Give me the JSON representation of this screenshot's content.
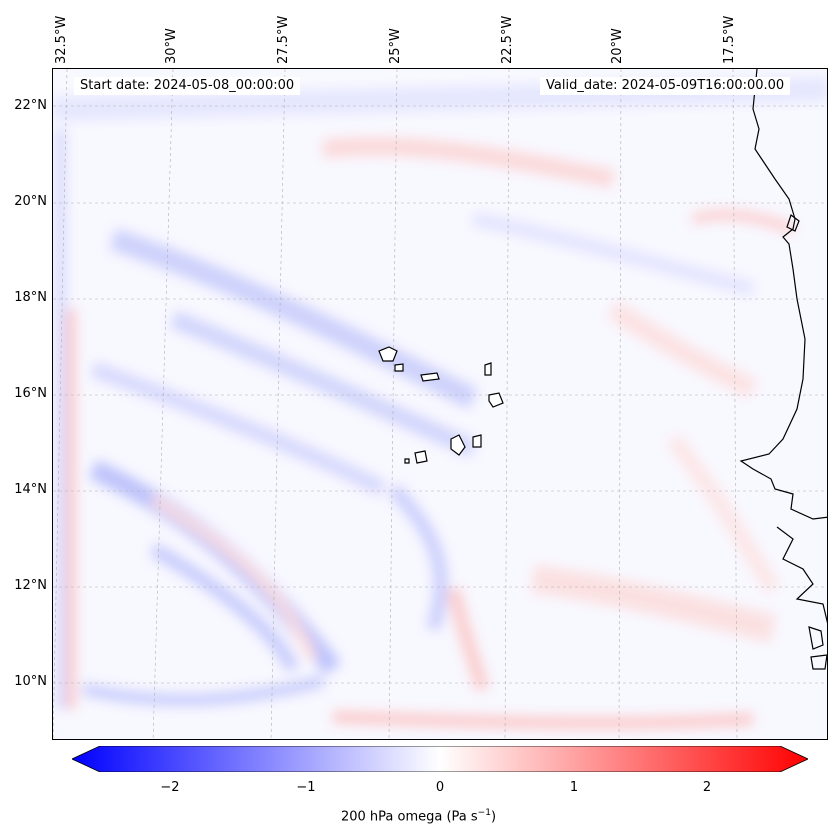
{
  "map": {
    "start_date": "Start date: 2024-05-08_00:00:00",
    "valid_date": "Valid_date: 2024-05-09T16:00:00.00",
    "lat_labels": [
      "22°N",
      "20°N",
      "18°N",
      "16°N",
      "14°N",
      "12°N",
      "10°N"
    ],
    "lon_labels": [
      "32.5°W",
      "30°W",
      "27.5°W",
      "25°W",
      "22.5°W",
      "20°W",
      "17.5°W"
    ],
    "field": "200 hPa omega",
    "colormap": [
      "#0000ff",
      "#ffffff",
      "#ff0000"
    ],
    "coastline_color": "#000000"
  },
  "colorbar": {
    "ticks": [
      "−2",
      "−1",
      "0",
      "1",
      "2"
    ],
    "label_main": "200 hPa omega (Pa s",
    "label_exp": "−1",
    "label_end": ")",
    "min": -2.7,
    "max": 2.7
  }
}
